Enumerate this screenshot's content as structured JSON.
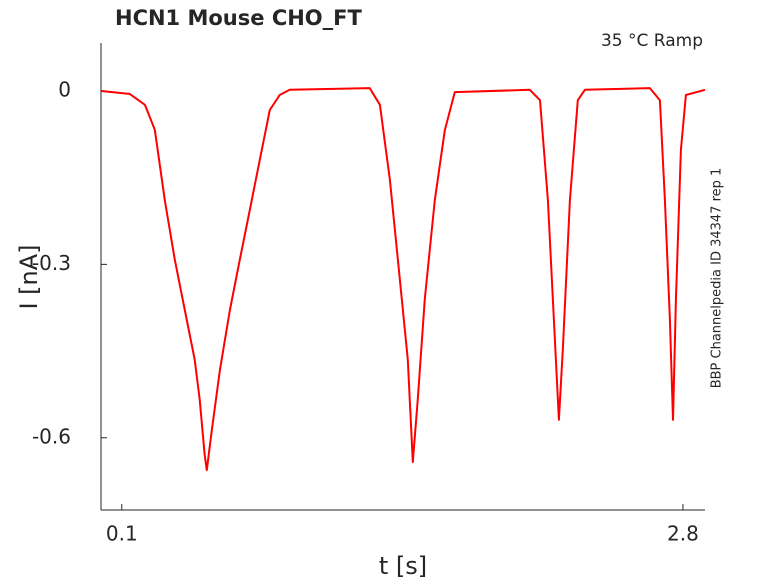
{
  "chart_data": {
    "type": "line",
    "title": "HCN1  Mouse  CHO_FT",
    "annotation": "35 °C  Ramp",
    "side_note": "BBP Channelpedia ID 34347 rep 1",
    "x_label": "t [s]",
    "y_label": "I [nA]",
    "x": [
      0.0,
      0.138,
      0.211,
      0.259,
      0.307,
      0.355,
      0.403,
      0.451,
      0.475,
      0.499,
      0.509,
      0.533,
      0.572,
      0.62,
      0.668,
      0.716,
      0.764,
      0.812,
      0.86,
      0.908,
      1.293,
      1.342,
      1.39,
      1.438,
      1.476,
      1.5,
      1.524,
      1.558,
      1.606,
      1.654,
      1.702,
      2.063,
      2.112,
      2.15,
      2.174,
      2.203,
      2.222,
      2.256,
      2.294,
      2.328,
      2.641,
      2.689,
      2.713,
      2.737,
      2.752,
      2.766,
      2.79,
      2.814,
      2.906
    ],
    "series": [
      {
        "color": "#ff0000",
        "values": [
          0.0,
          -0.005,
          -0.024,
          -0.067,
          -0.189,
          -0.292,
          -0.379,
          -0.465,
          -0.534,
          -0.63,
          -0.656,
          -0.587,
          -0.483,
          -0.379,
          -0.292,
          -0.206,
          -0.119,
          -0.033,
          -0.007,
          0.002,
          0.005,
          -0.024,
          -0.154,
          -0.327,
          -0.465,
          -0.642,
          -0.533,
          -0.36,
          -0.189,
          -0.068,
          -0.002,
          0.002,
          -0.016,
          -0.189,
          -0.362,
          -0.569,
          -0.448,
          -0.189,
          -0.016,
          0.002,
          0.005,
          -0.016,
          -0.189,
          -0.396,
          -0.569,
          -0.362,
          -0.102,
          -0.007,
          0.002
        ]
      }
    ],
    "xlim": [
      0.0,
      2.906
    ],
    "ylim": [
      -0.725,
      0.083
    ],
    "xticks": [
      0.1,
      2.8
    ],
    "yticks": [
      -0.6,
      -0.3,
      0
    ]
  }
}
